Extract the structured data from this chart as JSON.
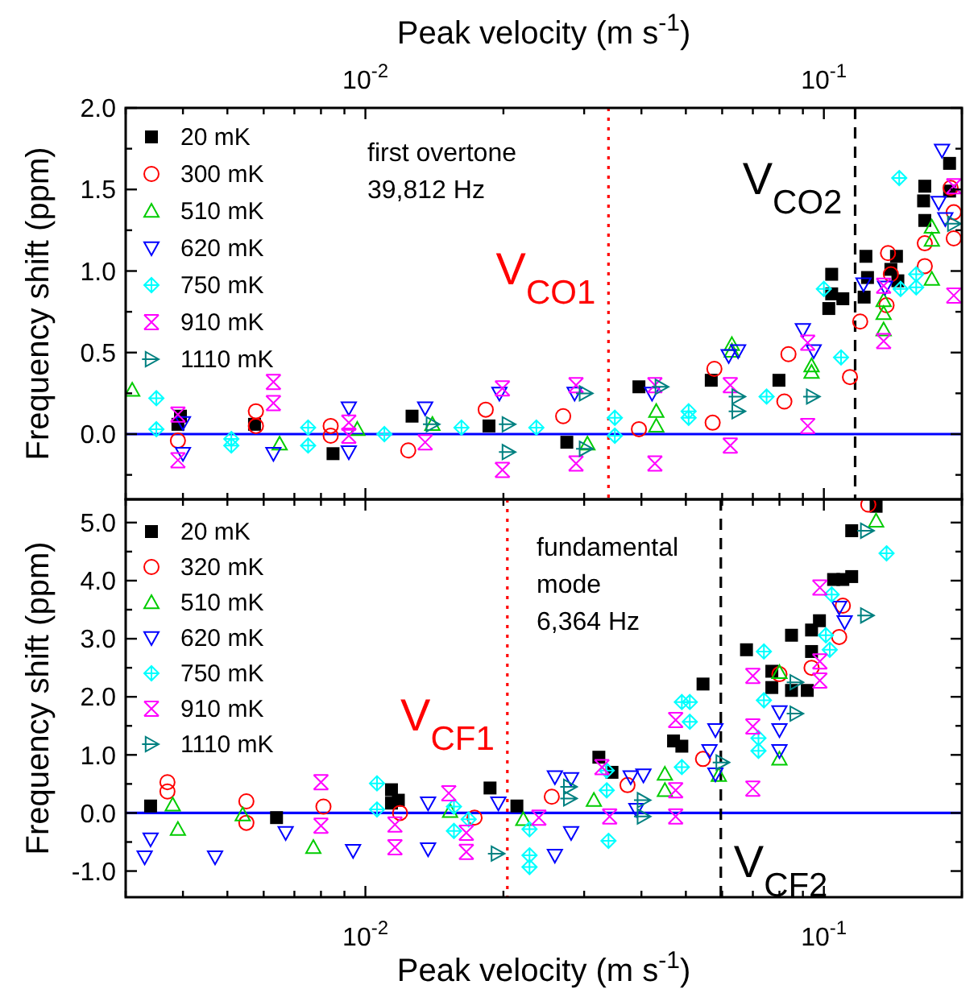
{
  "chart_data": [
    {
      "type": "scatter",
      "ylabel": "Frequency shift (ppm)",
      "xlabel": "Peak velocity (m s$^{-1}$)",
      "xlim": [
        0.003,
        0.2
      ],
      "log": "x",
      "ylim": [
        -0.4,
        2.0
      ],
      "xticks": [
        {
          "value": 0.003,
          "label": null
        },
        {
          "value": 0.004,
          "label": null
        },
        {
          "value": 0.005,
          "label": null
        },
        {
          "value": 0.006,
          "label": null
        },
        {
          "value": 0.007,
          "label": null
        },
        {
          "value": 0.008,
          "label": null
        },
        {
          "value": 0.009,
          "label": null
        },
        {
          "value": 0.01,
          "label": "10$^{-2}$"
        },
        {
          "value": 0.02,
          "label": null
        },
        {
          "value": 0.03,
          "label": null
        },
        {
          "value": 0.04,
          "label": null
        },
        {
          "value": 0.05,
          "label": null
        },
        {
          "value": 0.06,
          "label": null
        },
        {
          "value": 0.07,
          "label": null
        },
        {
          "value": 0.08,
          "label": null
        },
        {
          "value": 0.09,
          "label": null
        },
        {
          "value": 0.1,
          "label": "10$^{-1}$"
        },
        {
          "value": 0.2,
          "label": null
        }
      ],
      "yticks": [
        {
          "value": -0.25,
          "label": null
        },
        {
          "value": 0,
          "label": "0.0"
        },
        {
          "value": 0.25,
          "label": null
        },
        {
          "value": 0.5,
          "label": "0.5"
        },
        {
          "value": 0.75,
          "label": null
        },
        {
          "value": 1,
          "label": "1.0"
        },
        {
          "value": 1.25,
          "label": null
        },
        {
          "value": 1.5,
          "label": "1.5"
        },
        {
          "value": 1.75,
          "label": null
        },
        {
          "value": 2,
          "label": "2.0"
        }
      ],
      "legend": "top left",
      "grid": false,
      "annotations": [
        "first overtone\n39,812 Hz"
      ],
      "ref_lines": [
        {
          "axis": "y",
          "value": 0,
          "color": "#0000ff",
          "line_style": "solid"
        },
        {
          "axis": "x",
          "value": 0.0339,
          "label": "V$_{CO1}$",
          "color": "#ff0000",
          "line_style": "dotted"
        },
        {
          "axis": "x",
          "value": 0.117,
          "label": "V$_{CO2}$",
          "color": "#000000",
          "line_style": "dashed"
        }
      ],
      "series": [
        {
          "name": "20 mK",
          "color": "#000000",
          "x": [
            0.0039,
            0.00395,
            0.00573,
            0.0085,
            0.01264,
            0.0186,
            0.0275,
            0.0395,
            0.0568,
            0.0798,
            0.1025,
            0.104,
            0.104,
            0.11,
            0.1224,
            0.1235,
            0.1245,
            0.14,
            0.144,
            0.145,
            0.165,
            0.166,
            0.166,
            0.188,
            0.188
          ],
          "values": [
            0.06,
            0.11,
            0.06,
            -0.12,
            0.11,
            0.05,
            -0.05,
            0.29,
            0.33,
            0.33,
            0.77,
            0.86,
            0.98,
            0.83,
            0.84,
            1.09,
            0.96,
            1.01,
            1.09,
            0.94,
            1.43,
            1.52,
            1.31,
            1.49,
            1.66
          ]
        },
        {
          "name": "300 mK",
          "color": "#ff0000",
          "x": [
            0.0039,
            0.00577,
            0.00577,
            0.0084,
            0.0084,
            0.0124,
            0.0183,
            0.027,
            0.0395,
            0.0572,
            0.0577,
            0.082,
            0.0837,
            0.114,
            0.12,
            0.138,
            0.14,
            0.137,
            0.166,
            0.166,
            0.192,
            0.192,
            0.189
          ],
          "values": [
            -0.04,
            0.14,
            0.05,
            0.05,
            -0.01,
            -0.1,
            0.15,
            0.11,
            0.03,
            0.07,
            0.4,
            0.2,
            0.49,
            0.35,
            0.69,
            1.11,
            0.98,
            0.79,
            1.03,
            1.17,
            1.2,
            1.36,
            1.51
          ]
        },
        {
          "name": "510 mK",
          "color": "#00cc00",
          "x": [
            0.0031,
            0.0065,
            0.0096,
            0.014,
            0.0305,
            0.0431,
            0.0431,
            0.063,
            0.063,
            0.094,
            0.094,
            0.135,
            0.135,
            0.135,
            0.172,
            0.172,
            0.172
          ],
          "values": [
            0.27,
            -0.06,
            0.03,
            0.06,
            -0.06,
            0.14,
            0.05,
            0.55,
            0.51,
            0.38,
            0.42,
            0.82,
            0.74,
            0.64,
            1.27,
            1.19,
            0.95
          ]
        },
        {
          "name": "620 mK",
          "color": "#0000ff",
          "x": [
            0.004,
            0.004,
            0.0063,
            0.0092,
            0.0092,
            0.0135,
            0.0196,
            0.0286,
            0.0422,
            0.062,
            0.065,
            0.09,
            0.095,
            0.122,
            0.136,
            0.178,
            0.181,
            0.184
          ],
          "values": [
            0.07,
            -0.12,
            -0.12,
            0.16,
            -0.11,
            0.16,
            0.25,
            0.25,
            0.25,
            0.48,
            0.51,
            0.64,
            0.51,
            0.92,
            0.9,
            1.42,
            1.74,
            1.32
          ]
        },
        {
          "name": "750 mK",
          "color": "#00ffff",
          "x": [
            0.0035,
            0.0035,
            0.0051,
            0.0051,
            0.0075,
            0.0075,
            0.011,
            0.0162,
            0.0236,
            0.035,
            0.035,
            0.0507,
            0.0507,
            0.075,
            0.109,
            0.1,
            0.146,
            0.159,
            0.159,
            0.147
          ],
          "values": [
            0.22,
            0.03,
            -0.07,
            -0.03,
            0.04,
            -0.07,
            0.0,
            0.04,
            0.04,
            0.1,
            -0.01,
            0.14,
            0.1,
            0.23,
            0.47,
            0.89,
            1.57,
            0.98,
            0.9,
            0.89
          ]
        },
        {
          "name": "910 mK",
          "color": "#ff00ff",
          "x": [
            0.0039,
            0.0039,
            0.0063,
            0.0063,
            0.0092,
            0.0092,
            0.0135,
            0.0199,
            0.0199,
            0.0288,
            0.0288,
            0.0428,
            0.0428,
            0.0625,
            0.0625,
            0.0922,
            0.0922,
            0.135,
            0.135,
            0.192,
            0.192
          ],
          "values": [
            0.12,
            -0.16,
            0.32,
            0.19,
            0.07,
            -0.01,
            -0.05,
            0.28,
            -0.22,
            0.3,
            -0.18,
            0.3,
            -0.18,
            0.3,
            -0.07,
            0.05,
            0.56,
            0.57,
            0.91,
            0.85,
            1.52
          ]
        },
        {
          "name": "1110 mK",
          "color": "#008080",
          "x": [
            0.014,
            0.0205,
            0.0205,
            0.0302,
            0.0302,
            0.0442,
            0.065,
            0.065,
            0.0945,
            0.192
          ],
          "values": [
            0.06,
            0.06,
            -0.11,
            0.25,
            -0.09,
            0.29,
            0.23,
            0.14,
            0.23,
            1.29
          ]
        }
      ]
    },
    {
      "type": "scatter",
      "ylabel": "Frequency shift (ppm)",
      "xlabel": "Peak velocity (m s$^{-1}$)",
      "xlim": [
        0.003,
        0.2
      ],
      "log": "x",
      "ylim": [
        -1.45,
        5.4
      ],
      "xticks": [
        {
          "value": 0.003,
          "label": null
        },
        {
          "value": 0.004,
          "label": null
        },
        {
          "value": 0.005,
          "label": null
        },
        {
          "value": 0.006,
          "label": null
        },
        {
          "value": 0.007,
          "label": null
        },
        {
          "value": 0.008,
          "label": null
        },
        {
          "value": 0.009,
          "label": null
        },
        {
          "value": 0.01,
          "label": "10$^{-2}$"
        },
        {
          "value": 0.02,
          "label": null
        },
        {
          "value": 0.03,
          "label": null
        },
        {
          "value": 0.04,
          "label": null
        },
        {
          "value": 0.05,
          "label": null
        },
        {
          "value": 0.06,
          "label": null
        },
        {
          "value": 0.07,
          "label": null
        },
        {
          "value": 0.08,
          "label": null
        },
        {
          "value": 0.09,
          "label": null
        },
        {
          "value": 0.1,
          "label": "10$^{-1}$"
        },
        {
          "value": 0.2,
          "label": null
        }
      ],
      "yticks": [
        {
          "value": -1,
          "label": "-1.0"
        },
        {
          "value": -0.5,
          "label": null
        },
        {
          "value": 0,
          "label": "0.0"
        },
        {
          "value": 0.5,
          "label": null
        },
        {
          "value": 1,
          "label": "1.0"
        },
        {
          "value": 1.5,
          "label": null
        },
        {
          "value": 2,
          "label": "2.0"
        },
        {
          "value": 2.5,
          "label": null
        },
        {
          "value": 3,
          "label": "3.0"
        },
        {
          "value": 3.5,
          "label": null
        },
        {
          "value": 4,
          "label": "4.0"
        },
        {
          "value": 4.5,
          "label": null
        },
        {
          "value": 5,
          "label": "5.0"
        }
      ],
      "legend": "top left",
      "grid": false,
      "annotations": [
        "fundamental\nmode\n6,364 Hz"
      ],
      "ref_lines": [
        {
          "axis": "y",
          "value": 0,
          "color": "#0000ff",
          "line_style": "solid"
        },
        {
          "axis": "x",
          "value": 0.0204,
          "label": "V$_{CF1}$",
          "color": "#ff0000",
          "line_style": "dotted"
        },
        {
          "axis": "x",
          "value": 0.0596,
          "label": "V$_{CF2}$",
          "color": "#000000",
          "line_style": "dashed"
        }
      ],
      "series": [
        {
          "name": "20 mK",
          "color": "#000000",
          "x": [
            0.0034,
            0.0064,
            0.0114,
            0.0114,
            0.0118,
            0.0187,
            0.0214,
            0.0323,
            0.0345,
            0.047,
            0.049,
            0.0545,
            0.0678,
            0.077,
            0.077,
            0.085,
            0.085,
            0.092,
            0.094,
            0.094,
            0.0978,
            0.105,
            0.11,
            0.115,
            0.115,
            0.13
          ],
          "values": [
            0.12,
            -0.08,
            0.4,
            0.17,
            0.22,
            0.43,
            0.12,
            0.96,
            0.7,
            1.24,
            1.15,
            2.22,
            2.81,
            2.44,
            2.16,
            3.06,
            2.11,
            2.11,
            2.78,
            3.15,
            3.31,
            4.02,
            4.02,
            4.07,
            4.86,
            5.28
          ]
        },
        {
          "name": "320 mK",
          "color": "#ff0000",
          "x": [
            0.0037,
            0.0037,
            0.0055,
            0.0055,
            0.0081,
            0.0119,
            0.0173,
            0.0255,
            0.0373,
            0.0545,
            0.08,
            0.094,
            0.108,
            0.11,
            0.125
          ],
          "values": [
            0.53,
            0.37,
            0.2,
            -0.17,
            0.11,
            0.0,
            -0.08,
            0.28,
            0.48,
            0.93,
            2.39,
            2.5,
            3.03,
            3.57,
            5.31
          ]
        },
        {
          "name": "510 mK",
          "color": "#00cc00",
          "x": [
            0.0038,
            0.0039,
            0.0054,
            0.0077,
            0.0153,
            0.0221,
            0.0315,
            0.045,
            0.045,
            0.059,
            0.08,
            0.08,
            0.13
          ],
          "values": [
            0.14,
            -0.28,
            -0.03,
            -0.59,
            0.03,
            -0.11,
            0.22,
            0.67,
            0.39,
            0.65,
            2.42,
            0.93,
            5.03
          ]
        },
        {
          "name": "620 mK",
          "color": "#0000ff",
          "x": [
            0.0034,
            0.0033,
            0.0047,
            0.0067,
            0.0094,
            0.0137,
            0.0137,
            0.0195,
            0.0259,
            0.0259,
            0.0281,
            0.0281,
            0.0379,
            0.0404,
            0.039,
            0.058,
            0.0563,
            0.058,
            0.08,
            0.08,
            0.08,
            0.108,
            0.111
          ],
          "values": [
            -0.45,
            -0.76,
            -0.76,
            -0.34,
            -0.65,
            0.17,
            -0.62,
            0.17,
            -0.73,
            0.62,
            0.59,
            -0.34,
            0.62,
            0.65,
            0.06,
            1.43,
            1.07,
            0.67,
            1.74,
            1.43,
            1.07,
            3.54,
            3.29
          ]
        },
        {
          "name": "750 mK",
          "color": "#00ffff",
          "x": [
            0.0106,
            0.0106,
            0.0156,
            0.0156,
            0.0168,
            0.0228,
            0.0228,
            0.0228,
            0.0336,
            0.0336,
            0.0339,
            0.049,
            0.051,
            0.051,
            0.049,
            0.074,
            0.074,
            0.072,
            0.072,
            0.101,
            0.103,
            0.104,
            0.137
          ],
          "values": [
            0.51,
            0.06,
            0.11,
            -0.31,
            -0.11,
            -0.28,
            -0.73,
            -0.93,
            0.73,
            0.39,
            -0.48,
            1.91,
            1.91,
            1.57,
            0.79,
            2.78,
            1.94,
            1.29,
            1.07,
            3.06,
            2.81,
            3.76,
            4.47
          ]
        },
        {
          "name": "910 mK",
          "color": "#ff00ff",
          "x": [
            0.008,
            0.008,
            0.0116,
            0.0116,
            0.0152,
            0.0166,
            0.0166,
            0.0239,
            0.0328,
            0.0341,
            0.0475,
            0.0475,
            0.0475,
            0.07,
            0.07,
            0.07,
            0.098,
            0.098,
            0.098
          ],
          "values": [
            0.53,
            -0.22,
            -0.2,
            -0.59,
            0.34,
            -0.34,
            -0.67,
            -0.08,
            0.79,
            -0.06,
            1.6,
            0.39,
            -0.06,
            2.36,
            1.49,
            0.42,
            3.88,
            2.61,
            2.28
          ]
        },
        {
          "name": "1110 mK",
          "color": "#008080",
          "x": [
            0.0194,
            0.0279,
            0.0279,
            0.0404,
            0.0404,
            0.06,
            0.087,
            0.087,
            0.124,
            0.124
          ],
          "values": [
            -0.7,
            0.45,
            0.25,
            0.22,
            -0.06,
            0.87,
            2.25,
            1.71,
            4.86,
            3.4
          ]
        }
      ]
    }
  ]
}
